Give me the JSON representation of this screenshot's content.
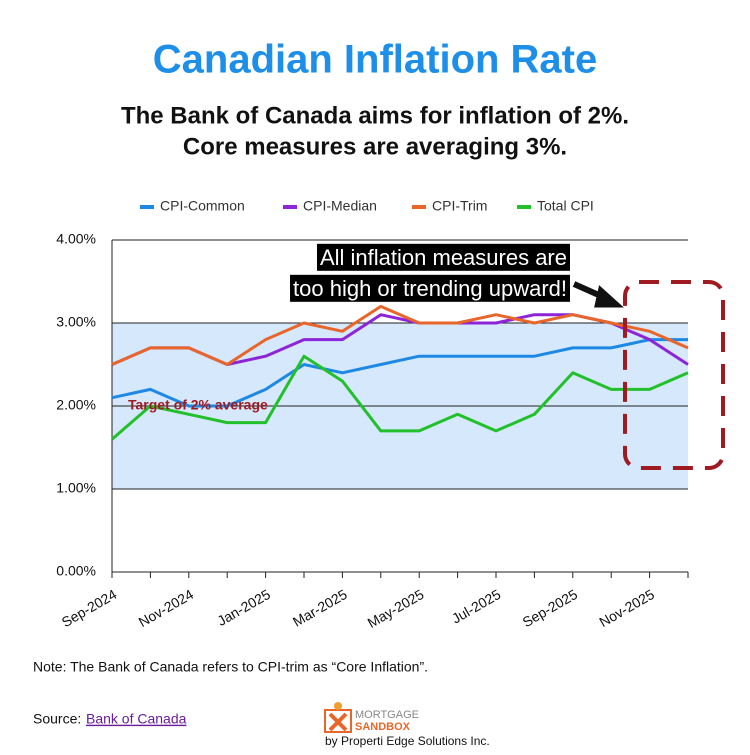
{
  "chart_data": {
    "type": "line",
    "title": "Canadian Inflation Rate",
    "subtitle": [
      "The Bank of Canada aims for inflation of 2%.",
      "Core measures are averaging 3%."
    ],
    "categories": [
      "Sep-2024",
      null,
      "Nov-2024",
      null,
      "Jan-2025",
      null,
      "Mar-2025",
      null,
      "May-2025",
      null,
      "Jul-2025",
      null,
      "Sep-2025",
      null,
      "Nov-2025",
      null
    ],
    "series": [
      {
        "name": "CPI-Common",
        "color": "#1e88e5",
        "values": [
          2.1,
          2.2,
          2.0,
          2.0,
          2.2,
          2.5,
          2.4,
          2.5,
          2.6,
          2.6,
          2.6,
          2.6,
          2.7,
          2.7,
          2.8,
          2.8
        ]
      },
      {
        "name": "CPI-Median",
        "color": "#8e24d8",
        "values": [
          2.5,
          2.7,
          2.7,
          2.5,
          2.6,
          2.8,
          2.8,
          3.1,
          3.0,
          3.0,
          3.0,
          3.1,
          3.1,
          3.0,
          2.8,
          2.5
        ]
      },
      {
        "name": "CPI-Trim",
        "color": "#e8662a",
        "values": [
          2.5,
          2.7,
          2.7,
          2.5,
          2.8,
          3.0,
          2.9,
          3.2,
          3.0,
          3.0,
          3.1,
          3.0,
          3.1,
          3.0,
          2.9,
          2.7
        ]
      },
      {
        "name": "Total CPI",
        "color": "#22c02a",
        "values": [
          1.6,
          2.0,
          1.9,
          1.8,
          1.8,
          2.6,
          2.3,
          1.7,
          1.7,
          1.9,
          1.7,
          1.9,
          2.4,
          2.2,
          2.2,
          2.4
        ]
      }
    ],
    "ylim": [
      0,
      4
    ],
    "yticks": [
      {
        "value": 0,
        "label": "0.00%"
      },
      {
        "value": 1,
        "label": "1.00%"
      },
      {
        "value": 2,
        "label": "2.00%"
      },
      {
        "value": 3,
        "label": "3.00%"
      },
      {
        "value": 4,
        "label": "4.00%"
      }
    ],
    "grid": true,
    "legend": "top",
    "target_band": [
      1,
      3
    ],
    "band_color": "#d6e8fb",
    "annotations": [
      "Target of 2% average",
      "All inflation measures are",
      "too high or trending upward!"
    ]
  },
  "note": "Note: The Bank of Canada refers to CPI-trim as “Core Inflation”.",
  "source": {
    "label": "Source:",
    "link": "Bank of Canada"
  },
  "logo": {
    "line1": "MORTGAGE",
    "line2": "SANDBOX",
    "byline": "by Properti Edge Solutions Inc."
  }
}
